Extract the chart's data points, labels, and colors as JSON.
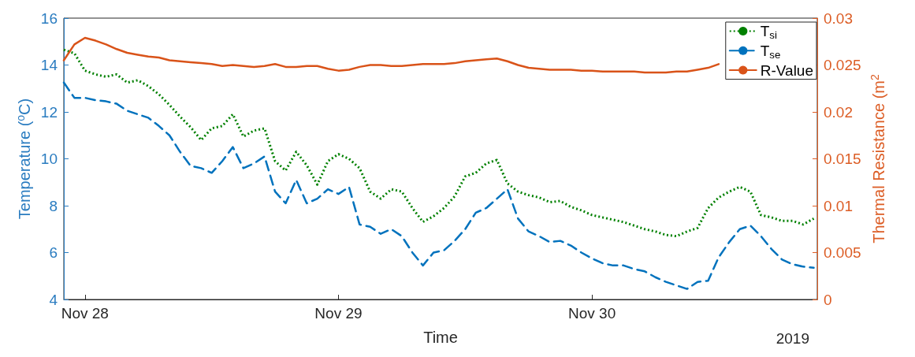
{
  "chart_data": {
    "type": "line",
    "xlabel": "Time",
    "ylabel": "Temperature ($^{o}$C)",
    "y2label": "Thermal Resistance (m$^{2}$",
    "annotations": [
      "2019"
    ],
    "x": [
      "2019-11-27T22:00",
      "2019-11-27T23:00",
      "2019-11-28T00:00",
      "2019-11-28T01:00",
      "2019-11-28T02:00",
      "2019-11-28T03:00",
      "2019-11-28T04:00",
      "2019-11-28T05:00",
      "2019-11-28T06:00",
      "2019-11-28T07:00",
      "2019-11-28T08:00",
      "2019-11-28T09:00",
      "2019-11-28T10:00",
      "2019-11-28T11:00",
      "2019-11-28T12:00",
      "2019-11-28T13:00",
      "2019-11-28T14:00",
      "2019-11-28T15:00",
      "2019-11-28T16:00",
      "2019-11-28T17:00",
      "2019-11-28T18:00",
      "2019-11-28T19:00",
      "2019-11-28T20:00",
      "2019-11-28T21:00",
      "2019-11-28T22:00",
      "2019-11-28T23:00",
      "2019-11-29T00:00",
      "2019-11-29T01:00",
      "2019-11-29T02:00",
      "2019-11-29T03:00",
      "2019-11-29T04:00",
      "2019-11-29T05:00",
      "2019-11-29T06:00",
      "2019-11-29T07:00",
      "2019-11-29T08:00",
      "2019-11-29T09:00",
      "2019-11-29T10:00",
      "2019-11-29T11:00",
      "2019-11-29T12:00",
      "2019-11-29T13:00",
      "2019-11-29T14:00",
      "2019-11-29T15:00",
      "2019-11-29T16:00",
      "2019-11-29T17:00",
      "2019-11-29T18:00",
      "2019-11-29T19:00",
      "2019-11-29T20:00",
      "2019-11-29T21:00",
      "2019-11-29T22:00",
      "2019-11-29T23:00",
      "2019-11-30T00:00",
      "2019-11-30T01:00",
      "2019-11-30T02:00",
      "2019-11-30T03:00",
      "2019-11-30T04:00",
      "2019-11-30T05:00",
      "2019-11-30T06:00",
      "2019-11-30T07:00",
      "2019-11-30T08:00",
      "2019-11-30T09:00",
      "2019-11-30T10:00",
      "2019-11-30T11:00",
      "2019-11-30T12:00",
      "2019-11-30T13:00",
      "2019-11-30T14:00",
      "2019-11-30T15:00",
      "2019-11-30T16:00",
      "2019-11-30T17:00",
      "2019-11-30T18:00",
      "2019-11-30T19:00",
      "2019-11-30T20:00",
      "2019-11-30T21:00"
    ],
    "series": [
      {
        "name": "T$_{si}$",
        "color": "#008000",
        "line_style": "dotted",
        "values": [
          14.65,
          14.5,
          13.76,
          13.6,
          13.5,
          13.6,
          13.25,
          13.35,
          13.1,
          12.75,
          12.3,
          11.8,
          11.35,
          10.8,
          11.3,
          11.4,
          11.9,
          10.95,
          11.2,
          11.3,
          9.9,
          9.5,
          10.3,
          9.72,
          8.9,
          9.9,
          10.2,
          10.0,
          9.6,
          8.6,
          8.3,
          8.7,
          8.6,
          7.9,
          7.31,
          7.55,
          7.9,
          8.4,
          9.25,
          9.4,
          9.8,
          9.95,
          8.95,
          8.6,
          8.45,
          8.35,
          8.15,
          8.2,
          7.95,
          7.8,
          7.6,
          7.5,
          7.4,
          7.3,
          7.15,
          7.0,
          6.9,
          6.75,
          6.7,
          6.9,
          7.05,
          7.9,
          8.35,
          8.6,
          8.8,
          8.6,
          7.6,
          7.5,
          7.35,
          7.35,
          7.2,
          7.45
        ]
      },
      {
        "name": "T$_{se}$",
        "color": "#0072bd",
        "line_style": "dashed",
        "values": [
          13.25,
          12.6,
          12.6,
          12.5,
          12.45,
          12.35,
          12.05,
          11.9,
          11.75,
          11.4,
          11.0,
          10.3,
          9.7,
          9.6,
          9.4,
          9.9,
          10.5,
          9.6,
          9.8,
          10.1,
          8.6,
          8.1,
          9.1,
          8.1,
          8.3,
          8.7,
          8.5,
          8.8,
          7.2,
          7.1,
          6.8,
          7.0,
          6.7,
          6.0,
          5.45,
          6.0,
          6.1,
          6.5,
          7.0,
          7.7,
          7.9,
          8.3,
          8.7,
          7.45,
          6.9,
          6.7,
          6.45,
          6.5,
          6.3,
          6.0,
          5.75,
          5.55,
          5.45,
          5.45,
          5.3,
          5.2,
          4.95,
          4.75,
          4.6,
          4.45,
          4.75,
          4.8,
          5.8,
          6.45,
          7.0,
          7.15,
          6.7,
          6.15,
          5.7,
          5.5,
          5.4,
          5.35
        ]
      },
      {
        "name": "R-Value",
        "color": "#d95319",
        "line_style": "solid",
        "axis": "y2",
        "values": [
          0.0255,
          0.0272,
          0.0279,
          0.0276,
          0.0272,
          0.0267,
          0.0263,
          0.0261,
          0.0259,
          0.0258,
          0.0255,
          0.0254,
          0.0253,
          0.0252,
          0.0251,
          0.0249,
          0.025,
          0.0249,
          0.0248,
          0.0249,
          0.0251,
          0.0248,
          0.0248,
          0.0249,
          0.0249,
          0.0246,
          0.0244,
          0.0245,
          0.0248,
          0.025,
          0.025,
          0.0249,
          0.0249,
          0.025,
          0.0251,
          0.0251,
          0.0251,
          0.0252,
          0.0254,
          0.0255,
          0.0256,
          0.0257,
          0.0254,
          0.025,
          0.0247,
          0.0246,
          0.0245,
          0.0245,
          0.0245,
          0.0244,
          0.0244,
          0.0243,
          0.0243,
          0.0243,
          0.0243,
          0.0242,
          0.0242,
          0.0242,
          0.0243,
          0.0243,
          0.0245,
          0.0247,
          0.0251,
          null,
          null,
          null,
          null,
          null,
          null,
          null,
          null,
          null
        ]
      }
    ],
    "xlim": [
      "2019-11-27T22:00",
      "2019-11-30T21:20"
    ],
    "xticks": [
      {
        "value": "2019-11-28T00:00",
        "label": "Nov 28"
      },
      {
        "value": "2019-11-29T00:00",
        "label": "Nov 29"
      },
      {
        "value": "2019-11-30T00:00",
        "label": "Nov 30"
      }
    ],
    "ylim": [
      4,
      16
    ],
    "yticks": [
      4,
      6,
      8,
      10,
      12,
      14,
      16
    ],
    "y2lim": [
      0,
      0.03
    ],
    "y2ticks": [
      0,
      0.005,
      0.01,
      0.015,
      0.02,
      0.025,
      0.03
    ],
    "legend": "top right",
    "grid": false
  }
}
